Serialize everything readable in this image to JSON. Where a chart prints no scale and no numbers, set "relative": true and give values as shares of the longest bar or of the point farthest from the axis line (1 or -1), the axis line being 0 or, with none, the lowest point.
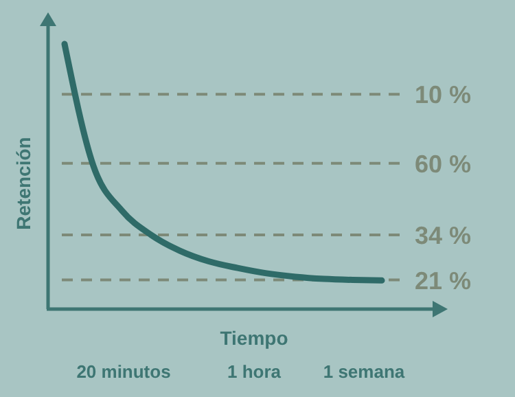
{
  "chart_data": {
    "type": "line",
    "relative": true,
    "xlabel": "Tiempo",
    "ylabel": "Retención",
    "categories": [
      null,
      null,
      null,
      null,
      null,
      null,
      null,
      null,
      null,
      null,
      null,
      null
    ],
    "series": [
      {
        "color": "#2f6b68",
        "values": [
          1.0,
          0.54,
          0.37,
          0.28,
          0.22,
          0.18,
          0.155,
          0.135,
          0.122,
          0.114,
          0.11,
          0.108
        ]
      }
    ],
    "ref_lines": [
      {
        "axis": "y",
        "value": 0.81,
        "color": "#7d8a78",
        "line_style": "dashed"
      },
      {
        "axis": "y",
        "value": 0.55,
        "color": "#7d8a78",
        "line_style": "dashed"
      },
      {
        "axis": "y",
        "value": 0.28,
        "color": "#7d8a78",
        "line_style": "dashed"
      },
      {
        "axis": "y",
        "value": 0.11,
        "color": "#7d8a78",
        "line_style": "dashed"
      }
    ],
    "annotations": [
      "10 %",
      "60 %",
      "34 %",
      "21 %",
      "20 minutos",
      "1 hora",
      "1 semana"
    ],
    "marker": "none",
    "line_style": "solid"
  }
}
